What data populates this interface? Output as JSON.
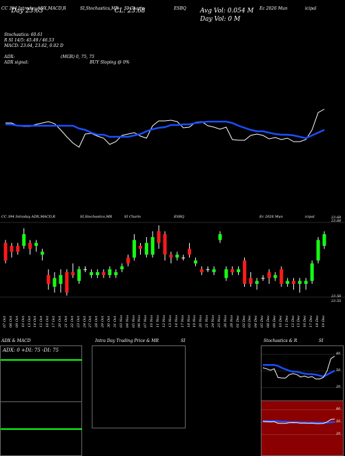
{
  "header": {
    "row1": [
      "CC 394 Intraday ADX,MACD,R",
      "SI,Stochastics,MR",
      "SI Charts",
      "ESBQ",
      "Ec 2026  Mun",
      "icipal"
    ],
    "prev_close": "CL: 23.68",
    "prev_line": "     Day  23.63",
    "avg_vol": "Avg Vol: 0.054  M",
    "day_vol": "Day Vol: 0  M",
    "stoch": "Stochastics: 60.61",
    "rsi": "R SI 14/5: 45.49 / 46.53",
    "macd": "MACD: 23.64,  23.62,  0.02  D",
    "adx": "ADX:",
    "mgr": "(MGR) 0,  75,  75",
    "adx_signal": "ADX  signal:",
    "buy_signal": "BUY Sloping @ 0%",
    "price_row": [
      "CC 394 Intraday ADX,MACD,R",
      "SI,Stochastics,MR",
      "SI Charts",
      "ESBQ",
      "Ec 2026  Mun",
      "icipal"
    ]
  },
  "price_axis": [
    "23.68",
    "23.66",
    "23.56",
    "23.55"
  ],
  "dates": [
    "07 Oct",
    "08 Oct",
    "09 Oct",
    "10 Oct",
    "13 Oct",
    "14 Oct",
    "15 Oct",
    "16 Oct",
    "17 Oct",
    "20 Oct",
    "21 Oct",
    "22 Oct",
    "23 Oct",
    "24 Oct",
    "27 Oct",
    "28 Oct",
    "29 Oct",
    "30 Oct",
    "31 Oct",
    "03 Nov",
    "04 Nov",
    "05 Nov",
    "06 Nov",
    "07 Nov",
    "10 Nov",
    "11 Nov",
    "12 Nov",
    "13 Nov",
    "14 Nov",
    "17 Nov",
    "18 Nov",
    "19 Nov",
    "20 Nov",
    "21 Nov",
    "24 Nov",
    "25 Nov",
    "26 Nov",
    "28 Nov",
    "01 Dec",
    "02 Dec",
    "03 Dec",
    "04 Dec",
    "05 Dec",
    "08 Dec",
    "09 Dec",
    "10 Dec",
    "11 Dec",
    "12 Dec",
    "15 Dec",
    "16 Dec",
    "17 Dec",
    "18 Dec",
    "19 Dec"
  ],
  "panels": {
    "adx_title": "ADX  & MACD",
    "adx_text": "ADX: 0   +DI: 75  -DI: 75",
    "intra_title": "Intra  Day Trading Price  & MR",
    "intra_si": "SI",
    "stoch_title": "Stochastics & R",
    "stoch_si": "SI",
    "stoch_levels": [
      "80",
      "50",
      "20"
    ],
    "rsi_levels": [
      "80",
      "50",
      "20"
    ]
  },
  "colors": {
    "blue": "#1a4fff",
    "red": "#ff1a1a",
    "green": "#14ff14",
    "maroon": "#8b0000"
  },
  "chart_data": {
    "type": "candlestick",
    "price_scale": {
      "top": 23.68,
      "bottom": 23.55
    },
    "candles": [
      {
        "o": 23.645,
        "c": 23.615,
        "h": 23.65,
        "l": 23.61,
        "dir": "down"
      },
      {
        "o": 23.64,
        "c": 23.63,
        "h": 23.645,
        "l": 23.62,
        "dir": "down"
      },
      {
        "o": 23.64,
        "c": 23.63,
        "h": 23.645,
        "l": 23.625,
        "dir": "down"
      },
      {
        "o": 23.64,
        "c": 23.66,
        "h": 23.67,
        "l": 23.635,
        "dir": "up"
      },
      {
        "o": 23.645,
        "c": 23.635,
        "h": 23.65,
        "l": 23.625,
        "dir": "down"
      },
      {
        "o": 23.64,
        "c": 23.645,
        "h": 23.65,
        "l": 23.63,
        "dir": "up"
      },
      {
        "o": 23.625,
        "c": 23.63,
        "h": 23.635,
        "l": 23.615,
        "dir": "up"
      },
      {
        "o": 23.59,
        "c": 23.575,
        "h": 23.6,
        "l": 23.565,
        "dir": "down"
      },
      {
        "o": 23.57,
        "c": 23.585,
        "h": 23.595,
        "l": 23.56,
        "dir": "up"
      },
      {
        "o": 23.575,
        "c": 23.59,
        "h": 23.6,
        "l": 23.56,
        "dir": "up"
      },
      {
        "o": 23.595,
        "c": 23.56,
        "h": 23.6,
        "l": 23.555,
        "dir": "down"
      },
      {
        "o": 23.595,
        "c": 23.59,
        "h": 23.61,
        "l": 23.585,
        "dir": "down"
      },
      {
        "o": 23.58,
        "c": 23.6,
        "h": 23.605,
        "l": 23.575,
        "dir": "up"
      },
      {
        "o": 23.6,
        "c": 23.6,
        "h": 23.605,
        "l": 23.595,
        "dir": "flat"
      },
      {
        "o": 23.59,
        "c": 23.595,
        "h": 23.6,
        "l": 23.585,
        "dir": "up"
      },
      {
        "o": 23.59,
        "c": 23.595,
        "h": 23.6,
        "l": 23.585,
        "dir": "up"
      },
      {
        "o": 23.595,
        "c": 23.59,
        "h": 23.6,
        "l": 23.585,
        "dir": "down"
      },
      {
        "o": 23.59,
        "c": 23.6,
        "h": 23.605,
        "l": 23.585,
        "dir": "up"
      },
      {
        "o": 23.59,
        "c": 23.595,
        "h": 23.6,
        "l": 23.585,
        "dir": "up"
      },
      {
        "o": 23.6,
        "c": 23.605,
        "h": 23.61,
        "l": 23.595,
        "dir": "up"
      },
      {
        "o": 23.62,
        "c": 23.61,
        "h": 23.625,
        "l": 23.605,
        "dir": "down"
      },
      {
        "o": 23.62,
        "c": 23.65,
        "h": 23.66,
        "l": 23.615,
        "dir": "up"
      },
      {
        "o": 23.64,
        "c": 23.635,
        "h": 23.645,
        "l": 23.625,
        "dir": "down"
      },
      {
        "o": 23.625,
        "c": 23.645,
        "h": 23.655,
        "l": 23.62,
        "dir": "up"
      },
      {
        "o": 23.625,
        "c": 23.655,
        "h": 23.665,
        "l": 23.62,
        "dir": "up"
      },
      {
        "o": 23.665,
        "c": 23.645,
        "h": 23.675,
        "l": 23.635,
        "dir": "down"
      },
      {
        "o": 23.66,
        "c": 23.625,
        "h": 23.665,
        "l": 23.615,
        "dir": "down"
      },
      {
        "o": 23.625,
        "c": 23.62,
        "h": 23.63,
        "l": 23.61,
        "dir": "down"
      },
      {
        "o": 23.62,
        "c": 23.625,
        "h": 23.63,
        "l": 23.615,
        "dir": "up"
      },
      {
        "o": 23.62,
        "c": 23.62,
        "h": 23.625,
        "l": 23.615,
        "dir": "flat"
      },
      {
        "o": 23.635,
        "c": 23.625,
        "h": 23.645,
        "l": 23.62,
        "dir": "down"
      },
      {
        "o": 23.61,
        "c": 23.615,
        "h": 23.62,
        "l": 23.605,
        "dir": "up"
      },
      {
        "o": 23.6,
        "c": 23.595,
        "h": 23.605,
        "l": 23.59,
        "dir": "down"
      },
      {
        "o": 23.6,
        "c": 23.6,
        "h": 23.605,
        "l": 23.595,
        "dir": "flat"
      },
      {
        "o": 23.595,
        "c": 23.6,
        "h": 23.605,
        "l": 23.59,
        "dir": "up"
      },
      {
        "o": 23.65,
        "c": 23.66,
        "h": 23.665,
        "l": 23.645,
        "dir": "up"
      },
      {
        "o": 23.585,
        "c": 23.6,
        "h": 23.605,
        "l": 23.58,
        "dir": "up"
      },
      {
        "o": 23.6,
        "c": 23.595,
        "h": 23.605,
        "l": 23.59,
        "dir": "down"
      },
      {
        "o": 23.595,
        "c": 23.6,
        "h": 23.605,
        "l": 23.59,
        "dir": "up"
      },
      {
        "o": 23.615,
        "c": 23.575,
        "h": 23.62,
        "l": 23.57,
        "dir": "down"
      },
      {
        "o": 23.585,
        "c": 23.575,
        "h": 23.595,
        "l": 23.57,
        "dir": "down"
      },
      {
        "o": 23.575,
        "c": 23.58,
        "h": 23.585,
        "l": 23.565,
        "dir": "up"
      },
      {
        "o": 23.585,
        "c": 23.585,
        "h": 23.59,
        "l": 23.58,
        "dir": "flat"
      },
      {
        "o": 23.595,
        "c": 23.585,
        "h": 23.6,
        "l": 23.575,
        "dir": "down"
      },
      {
        "o": 23.585,
        "c": 23.59,
        "h": 23.595,
        "l": 23.58,
        "dir": "up"
      },
      {
        "o": 23.6,
        "c": 23.575,
        "h": 23.605,
        "l": 23.57,
        "dir": "down"
      },
      {
        "o": 23.575,
        "c": 23.58,
        "h": 23.585,
        "l": 23.57,
        "dir": "up"
      },
      {
        "o": 23.58,
        "c": 23.575,
        "h": 23.585,
        "l": 23.565,
        "dir": "down"
      },
      {
        "o": 23.575,
        "c": 23.58,
        "h": 23.585,
        "l": 23.56,
        "dir": "up"
      },
      {
        "o": 23.575,
        "c": 23.58,
        "h": 23.585,
        "l": 23.565,
        "dir": "up"
      },
      {
        "o": 23.58,
        "c": 23.61,
        "h": 23.615,
        "l": 23.575,
        "dir": "up"
      },
      {
        "o": 23.615,
        "c": 23.65,
        "h": 23.655,
        "l": 23.61,
        "dir": "up"
      },
      {
        "o": 23.64,
        "c": 23.66,
        "h": 23.665,
        "l": 23.635,
        "dir": "up"
      }
    ],
    "indicator_white": [
      62,
      62,
      58,
      57,
      57,
      60,
      62,
      64,
      61,
      52,
      42,
      33,
      27,
      46,
      47,
      43,
      40,
      31,
      35,
      44,
      46,
      48,
      43,
      40,
      58,
      65,
      65,
      66,
      64,
      55,
      56,
      63,
      64,
      58,
      56,
      53,
      56,
      38,
      37,
      37,
      44,
      46,
      44,
      39,
      41,
      38,
      40,
      35,
      35,
      38,
      52,
      77,
      82
    ],
    "indicator_blue": [
      60,
      60,
      58,
      58,
      58,
      58,
      58,
      58,
      58,
      58,
      58,
      58,
      54,
      52,
      48,
      45,
      45,
      42,
      42,
      42,
      42,
      44,
      46,
      50,
      53,
      55,
      56,
      59,
      59,
      60,
      60,
      62,
      63,
      64,
      64,
      64,
      64,
      62,
      58,
      55,
      52,
      50,
      50,
      48,
      46,
      45,
      45,
      44,
      42,
      40,
      44,
      48,
      52
    ]
  }
}
